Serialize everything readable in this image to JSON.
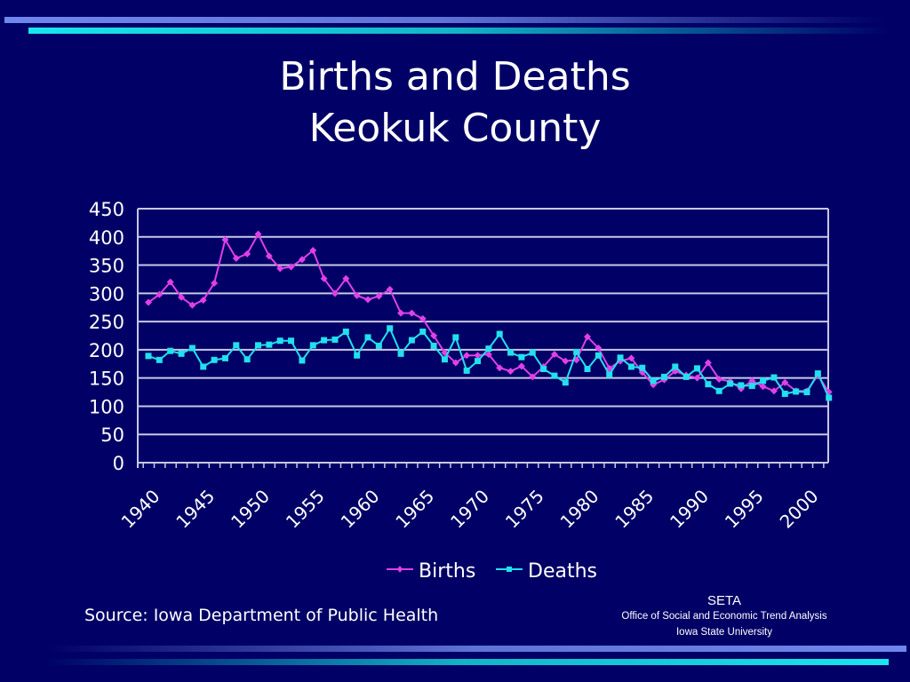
{
  "slide": {
    "title_line1": "Births and Deaths",
    "title_line2": "Keokuk County",
    "source": "Source:  Iowa Department of Public Health",
    "footer": {
      "org_short": "SETA",
      "org_long": "Office of Social and Economic Trend Analysis",
      "university": "Iowa State University"
    }
  },
  "colors": {
    "background": "#000066",
    "births": "#e040e8",
    "deaths": "#22e0ee",
    "grid": "#c8c8e8"
  },
  "chart_data": {
    "type": "line",
    "title": "Births and Deaths Keokuk County",
    "xlabel": "",
    "ylabel": "",
    "ylim": [
      0,
      450
    ],
    "yticks": [
      0,
      50,
      100,
      150,
      200,
      250,
      300,
      350,
      400,
      450
    ],
    "xtick_labels": [
      "1940",
      "1945",
      "1950",
      "1955",
      "1960",
      "1965",
      "1970",
      "1975",
      "1980",
      "1985",
      "1990",
      "1995",
      "2000"
    ],
    "grid": true,
    "legend_position": "bottom",
    "x": [
      1940,
      1941,
      1942,
      1943,
      1944,
      1945,
      1946,
      1947,
      1948,
      1949,
      1950,
      1951,
      1952,
      1953,
      1954,
      1955,
      1956,
      1957,
      1958,
      1959,
      1960,
      1961,
      1962,
      1963,
      1964,
      1965,
      1966,
      1967,
      1968,
      1969,
      1970,
      1971,
      1972,
      1973,
      1974,
      1975,
      1976,
      1977,
      1978,
      1979,
      1980,
      1981,
      1982,
      1983,
      1984,
      1985,
      1986,
      1987,
      1988,
      1989,
      1990,
      1991,
      1992,
      1993,
      1994,
      1995,
      1996,
      1997,
      1998,
      1999,
      2000,
      2001,
      2002
    ],
    "series": [
      {
        "name": "Births",
        "color": "#e040e8",
        "marker": "diamond",
        "values": [
          284,
          298,
          320,
          293,
          279,
          288,
          318,
          395,
          362,
          370,
          405,
          366,
          344,
          347,
          360,
          376,
          326,
          300,
          326,
          296,
          289,
          295,
          307,
          265,
          265,
          255,
          225,
          195,
          177,
          190,
          190,
          192,
          168,
          162,
          171,
          152,
          170,
          192,
          180,
          182,
          223,
          203,
          167,
          180,
          185,
          160,
          138,
          147,
          162,
          155,
          150,
          177,
          148,
          144,
          131,
          145,
          135,
          127,
          142,
          127,
          127,
          155,
          125
        ]
      },
      {
        "name": "Deaths",
        "color": "#22e0ee",
        "marker": "square",
        "values": [
          189,
          182,
          198,
          193,
          203,
          170,
          182,
          185,
          208,
          183,
          208,
          209,
          216,
          216,
          181,
          208,
          217,
          218,
          232,
          190,
          222,
          207,
          238,
          193,
          217,
          232,
          207,
          183,
          222,
          163,
          180,
          202,
          228,
          195,
          187,
          195,
          166,
          154,
          142,
          196,
          166,
          190,
          156,
          186,
          170,
          168,
          145,
          152,
          170,
          152,
          167,
          139,
          127,
          140,
          137,
          136,
          145,
          151,
          122,
          126,
          125,
          158,
          115
        ]
      }
    ]
  }
}
